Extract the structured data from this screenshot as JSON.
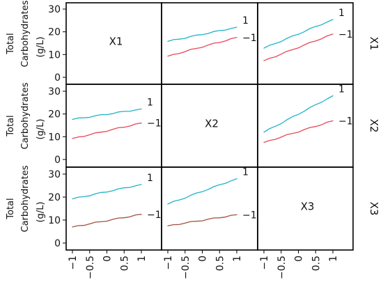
{
  "chart_data": {
    "type": "line",
    "factors": [
      "X1",
      "X2",
      "X3"
    ],
    "ylabel": "Total Carbohydrates (g/L)",
    "ylim": [
      0,
      30
    ],
    "yticks": [
      0,
      10,
      20,
      30
    ],
    "xlim": [
      -1,
      1
    ],
    "xticks": [
      -1,
      -0.5,
      0,
      0.5,
      1
    ],
    "xtick_labels": [
      "−1",
      "−0.5",
      "0",
      "0.5",
      "1"
    ],
    "colors": {
      "high": "#1fb3c8",
      "low": "#e8475a",
      "low_x3": "#a0523d"
    },
    "panels": [
      {
        "row": 0,
        "col": 1,
        "row_factor": "X1",
        "col_factor": "X2",
        "x": [
          -1,
          1
        ],
        "series": [
          {
            "level": "1",
            "values": [
              15.8,
              22.0
            ],
            "color": "#1fb3c8"
          },
          {
            "level": "-1",
            "values": [
              9.3,
              17.5
            ],
            "color": "#e8475a"
          }
        ]
      },
      {
        "row": 0,
        "col": 2,
        "row_factor": "X1",
        "col_factor": "X3",
        "x": [
          -1,
          1
        ],
        "series": [
          {
            "level": "1",
            "values": [
              12.8,
              25.4
            ],
            "color": "#1fb3c8"
          },
          {
            "level": "-1",
            "values": [
              7.3,
              19.0
            ],
            "color": "#e8475a"
          }
        ]
      },
      {
        "row": 1,
        "col": 0,
        "row_factor": "X2",
        "col_factor": "X1",
        "x": [
          -1,
          1
        ],
        "series": [
          {
            "level": "1",
            "values": [
              17.6,
              22.2
            ],
            "color": "#1fb3c8"
          },
          {
            "level": "-1",
            "values": [
              9.2,
              16.0
            ],
            "color": "#e8475a"
          }
        ]
      },
      {
        "row": 1,
        "col": 2,
        "row_factor": "X2",
        "col_factor": "X3",
        "x": [
          -1,
          1
        ],
        "series": [
          {
            "level": "1",
            "values": [
              12.0,
              28.0
            ],
            "color": "#1fb3c8"
          },
          {
            "level": "-1",
            "values": [
              7.5,
              17.0
            ],
            "color": "#e8475a"
          }
        ]
      },
      {
        "row": 2,
        "col": 0,
        "row_factor": "X3",
        "col_factor": "X1",
        "x": [
          -1,
          1
        ],
        "series": [
          {
            "level": "1",
            "values": [
              19.2,
              25.5
            ],
            "color": "#1fb3c8"
          },
          {
            "level": "-1",
            "values": [
              7.0,
              12.5
            ],
            "color": "#a0523d"
          }
        ]
      },
      {
        "row": 2,
        "col": 1,
        "row_factor": "X3",
        "col_factor": "X2",
        "x": [
          -1,
          1
        ],
        "series": [
          {
            "level": "1",
            "values": [
              17.0,
              28.0
            ],
            "color": "#1fb3c8"
          },
          {
            "level": "-1",
            "values": [
              7.5,
              12.3
            ],
            "color": "#a0523d"
          }
        ]
      }
    ]
  }
}
